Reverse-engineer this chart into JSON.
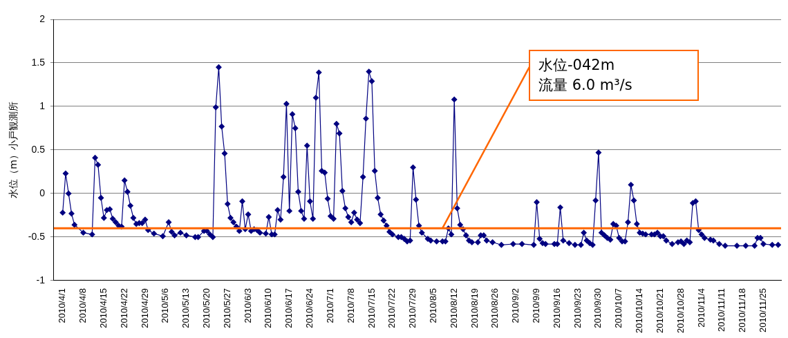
{
  "chart_data": {
    "type": "line",
    "ylabel": "水位（m）小戸観測所",
    "x": [
      "2010-04-01",
      "2010-04-02",
      "2010-04-03",
      "2010-04-04",
      "2010-04-05",
      "2010-04-08",
      "2010-04-11",
      "2010-04-12",
      "2010-04-13",
      "2010-04-14",
      "2010-04-15",
      "2010-04-16",
      "2010-04-17",
      "2010-04-18",
      "2010-04-19",
      "2010-04-20",
      "2010-04-21",
      "2010-04-22",
      "2010-04-23",
      "2010-04-24",
      "2010-04-25",
      "2010-04-26",
      "2010-04-27",
      "2010-04-28",
      "2010-04-29",
      "2010-04-30",
      "2010-05-02",
      "2010-05-05",
      "2010-05-07",
      "2010-05-08",
      "2010-05-09",
      "2010-05-11",
      "2010-05-13",
      "2010-05-16",
      "2010-05-17",
      "2010-05-19",
      "2010-05-20",
      "2010-05-21",
      "2010-05-22",
      "2010-05-23",
      "2010-05-24",
      "2010-05-25",
      "2010-05-26",
      "2010-05-27",
      "2010-05-28",
      "2010-05-29",
      "2010-05-30",
      "2010-05-31",
      "2010-06-01",
      "2010-06-02",
      "2010-06-03",
      "2010-06-04",
      "2010-06-05",
      "2010-06-06",
      "2010-06-07",
      "2010-06-09",
      "2010-06-10",
      "2010-06-11",
      "2010-06-12",
      "2010-06-13",
      "2010-06-14",
      "2010-06-15",
      "2010-06-16",
      "2010-06-17",
      "2010-06-18",
      "2010-06-19",
      "2010-06-20",
      "2010-06-21",
      "2010-06-22",
      "2010-06-23",
      "2010-06-24",
      "2010-06-25",
      "2010-06-26",
      "2010-06-27",
      "2010-06-28",
      "2010-06-29",
      "2010-06-30",
      "2010-07-01",
      "2010-07-02",
      "2010-07-03",
      "2010-07-04",
      "2010-07-05",
      "2010-07-06",
      "2010-07-07",
      "2010-07-08",
      "2010-07-09",
      "2010-07-10",
      "2010-07-11",
      "2010-07-12",
      "2010-07-13",
      "2010-07-14",
      "2010-07-15",
      "2010-07-16",
      "2010-07-17",
      "2010-07-18",
      "2010-07-19",
      "2010-07-20",
      "2010-07-21",
      "2010-07-22",
      "2010-07-24",
      "2010-07-25",
      "2010-07-26",
      "2010-07-27",
      "2010-07-28",
      "2010-07-29",
      "2010-07-30",
      "2010-07-31",
      "2010-08-01",
      "2010-08-03",
      "2010-08-04",
      "2010-08-06",
      "2010-08-08",
      "2010-08-09",
      "2010-08-10",
      "2010-08-11",
      "2010-08-12",
      "2010-08-13",
      "2010-08-14",
      "2010-08-15",
      "2010-08-16",
      "2010-08-17",
      "2010-08-18",
      "2010-08-20",
      "2010-08-21",
      "2010-08-22",
      "2010-08-23",
      "2010-08-25",
      "2010-08-28",
      "2010-09-01",
      "2010-09-04",
      "2010-09-08",
      "2010-09-09",
      "2010-09-10",
      "2010-09-11",
      "2010-09-12",
      "2010-09-15",
      "2010-09-16",
      "2010-09-17",
      "2010-09-18",
      "2010-09-20",
      "2010-09-22",
      "2010-09-24",
      "2010-09-25",
      "2010-09-26",
      "2010-09-27",
      "2010-09-28",
      "2010-09-29",
      "2010-09-30",
      "2010-10-01",
      "2010-10-02",
      "2010-10-03",
      "2010-10-04",
      "2010-10-05",
      "2010-10-06",
      "2010-10-07",
      "2010-10-08",
      "2010-10-09",
      "2010-10-10",
      "2010-10-11",
      "2010-10-12",
      "2010-10-13",
      "2010-10-14",
      "2010-10-15",
      "2010-10-16",
      "2010-10-18",
      "2010-10-19",
      "2010-10-20",
      "2010-10-21",
      "2010-10-22",
      "2010-10-23",
      "2010-10-25",
      "2010-10-27",
      "2010-10-28",
      "2010-10-29",
      "2010-10-30",
      "2010-10-31",
      "2010-11-01",
      "2010-11-02",
      "2010-11-03",
      "2010-11-04",
      "2010-11-05",
      "2010-11-07",
      "2010-11-08",
      "2010-11-10",
      "2010-11-12",
      "2010-11-16",
      "2010-11-19",
      "2010-11-22",
      "2010-11-23",
      "2010-11-24",
      "2010-11-25",
      "2010-11-28",
      "2010-11-30"
    ],
    "series": [
      {
        "color": "#000080",
        "values": [
          -0.22,
          0.23,
          0.0,
          -0.23,
          -0.36,
          -0.45,
          -0.47,
          0.41,
          0.33,
          -0.05,
          -0.28,
          -0.19,
          -0.18,
          -0.29,
          -0.33,
          -0.37,
          -0.38,
          0.15,
          0.02,
          -0.14,
          -0.28,
          -0.35,
          -0.34,
          -0.34,
          -0.3,
          -0.42,
          -0.46,
          -0.49,
          -0.33,
          -0.44,
          -0.48,
          -0.45,
          -0.48,
          -0.5,
          -0.5,
          -0.43,
          -0.43,
          -0.47,
          -0.5,
          0.99,
          1.45,
          0.77,
          0.46,
          -0.12,
          -0.28,
          -0.33,
          -0.38,
          -0.43,
          -0.09,
          -0.41,
          -0.24,
          -0.43,
          -0.41,
          -0.42,
          -0.45,
          -0.46,
          -0.27,
          -0.47,
          -0.47,
          -0.19,
          -0.3,
          0.19,
          1.03,
          -0.2,
          0.91,
          0.75,
          0.02,
          -0.2,
          -0.29,
          0.55,
          -0.09,
          -0.29,
          1.1,
          1.39,
          0.26,
          0.24,
          -0.06,
          -0.26,
          -0.29,
          0.8,
          0.69,
          0.03,
          -0.17,
          -0.27,
          -0.33,
          -0.22,
          -0.3,
          -0.34,
          0.19,
          0.86,
          1.4,
          1.29,
          0.26,
          -0.05,
          -0.24,
          -0.31,
          -0.37,
          -0.44,
          -0.47,
          -0.5,
          -0.5,
          -0.52,
          -0.55,
          -0.54,
          0.3,
          -0.07,
          -0.37,
          -0.45,
          -0.52,
          -0.54,
          -0.55,
          -0.55,
          -0.55,
          -0.4,
          -0.47,
          1.08,
          -0.17,
          -0.36,
          -0.41,
          -0.48,
          -0.54,
          -0.56,
          -0.56,
          -0.48,
          -0.48,
          -0.54,
          -0.56,
          -0.59,
          -0.58,
          -0.58,
          -0.59,
          -0.1,
          -0.52,
          -0.57,
          -0.58,
          -0.58,
          -0.58,
          -0.16,
          -0.54,
          -0.57,
          -0.59,
          -0.59,
          -0.45,
          -0.54,
          -0.57,
          -0.59,
          -0.08,
          0.47,
          -0.45,
          -0.48,
          -0.51,
          -0.53,
          -0.35,
          -0.37,
          -0.51,
          -0.55,
          -0.55,
          -0.33,
          0.1,
          -0.08,
          -0.35,
          -0.45,
          -0.46,
          -0.47,
          -0.47,
          -0.47,
          -0.45,
          -0.49,
          -0.49,
          -0.54,
          -0.58,
          -0.56,
          -0.55,
          -0.58,
          -0.54,
          -0.56,
          -0.11,
          -0.09,
          -0.42,
          -0.47,
          -0.51,
          -0.53,
          -0.54,
          -0.58,
          -0.6,
          -0.6,
          -0.6,
          -0.6,
          -0.51,
          -0.51,
          -0.58,
          -0.59,
          -0.59
        ]
      }
    ],
    "marker": "diamond",
    "line_style": "solid",
    "grid": "y",
    "legend": false,
    "ylim": [
      -1,
      2
    ],
    "yticks": [
      -1,
      -0.5,
      0,
      0.5,
      1,
      1.5,
      2
    ],
    "xlim": [
      "2010-03-29",
      "2010-12-01"
    ],
    "xticks": [
      {
        "value": "2010-04-01",
        "label": "2010/4/1"
      },
      {
        "value": "2010-04-08",
        "label": "2010/4/8"
      },
      {
        "value": "2010-04-15",
        "label": "2010/4/15"
      },
      {
        "value": "2010-04-22",
        "label": "2010/4/22"
      },
      {
        "value": "2010-04-29",
        "label": "2010/4/29"
      },
      {
        "value": "2010-05-06",
        "label": "2010/5/6"
      },
      {
        "value": "2010-05-13",
        "label": "2010/5/13"
      },
      {
        "value": "2010-05-20",
        "label": "2010/5/20"
      },
      {
        "value": "2010-05-27",
        "label": "2010/5/27"
      },
      {
        "value": "2010-06-03",
        "label": "2010/6/3"
      },
      {
        "value": "2010-06-10",
        "label": "2010/6/10"
      },
      {
        "value": "2010-06-17",
        "label": "2010/6/17"
      },
      {
        "value": "2010-06-24",
        "label": "2010/6/24"
      },
      {
        "value": "2010-07-01",
        "label": "2010/7/1"
      },
      {
        "value": "2010-07-08",
        "label": "2010/7/8"
      },
      {
        "value": "2010-07-15",
        "label": "2010/7/15"
      },
      {
        "value": "2010-07-22",
        "label": "2010/7/22"
      },
      {
        "value": "2010-07-29",
        "label": "2010/7/29"
      },
      {
        "value": "2010-08-05",
        "label": "2010/8/5"
      },
      {
        "value": "2010-08-12",
        "label": "2010/8/12"
      },
      {
        "value": "2010-08-19",
        "label": "2010/8/19"
      },
      {
        "value": "2010-08-26",
        "label": "2010/8/26"
      },
      {
        "value": "2010-09-02",
        "label": "2010/9/2"
      },
      {
        "value": "2010-09-09",
        "label": "2010/9/9"
      },
      {
        "value": "2010-09-16",
        "label": "2010/9/16"
      },
      {
        "value": "2010-09-23",
        "label": "2010/9/23"
      },
      {
        "value": "2010-09-30",
        "label": "2010/9/30"
      },
      {
        "value": "2010-10-07",
        "label": "2010/10/7"
      },
      {
        "value": "2010-10-14",
        "label": "2010/10/14"
      },
      {
        "value": "2010-10-21",
        "label": "2010/10/21"
      },
      {
        "value": "2010-10-28",
        "label": "2010/10/28"
      },
      {
        "value": "2010-11-04",
        "label": "2010/11/4"
      },
      {
        "value": "2010-11-11",
        "label": "2010/11/11"
      },
      {
        "value": "2010-11-18",
        "label": "2010/11/18"
      },
      {
        "value": "2010-11-25",
        "label": "2010/11/25"
      }
    ],
    "annotations": [
      {
        "text": "水位-042m\n流量 6.0 m³/s",
        "x": "2010-08-08",
        "y": -0.4
      }
    ],
    "ref_lines": [
      {
        "axis": "y",
        "value": -0.4,
        "color": "#ff6600",
        "line_style": "solid"
      }
    ]
  }
}
